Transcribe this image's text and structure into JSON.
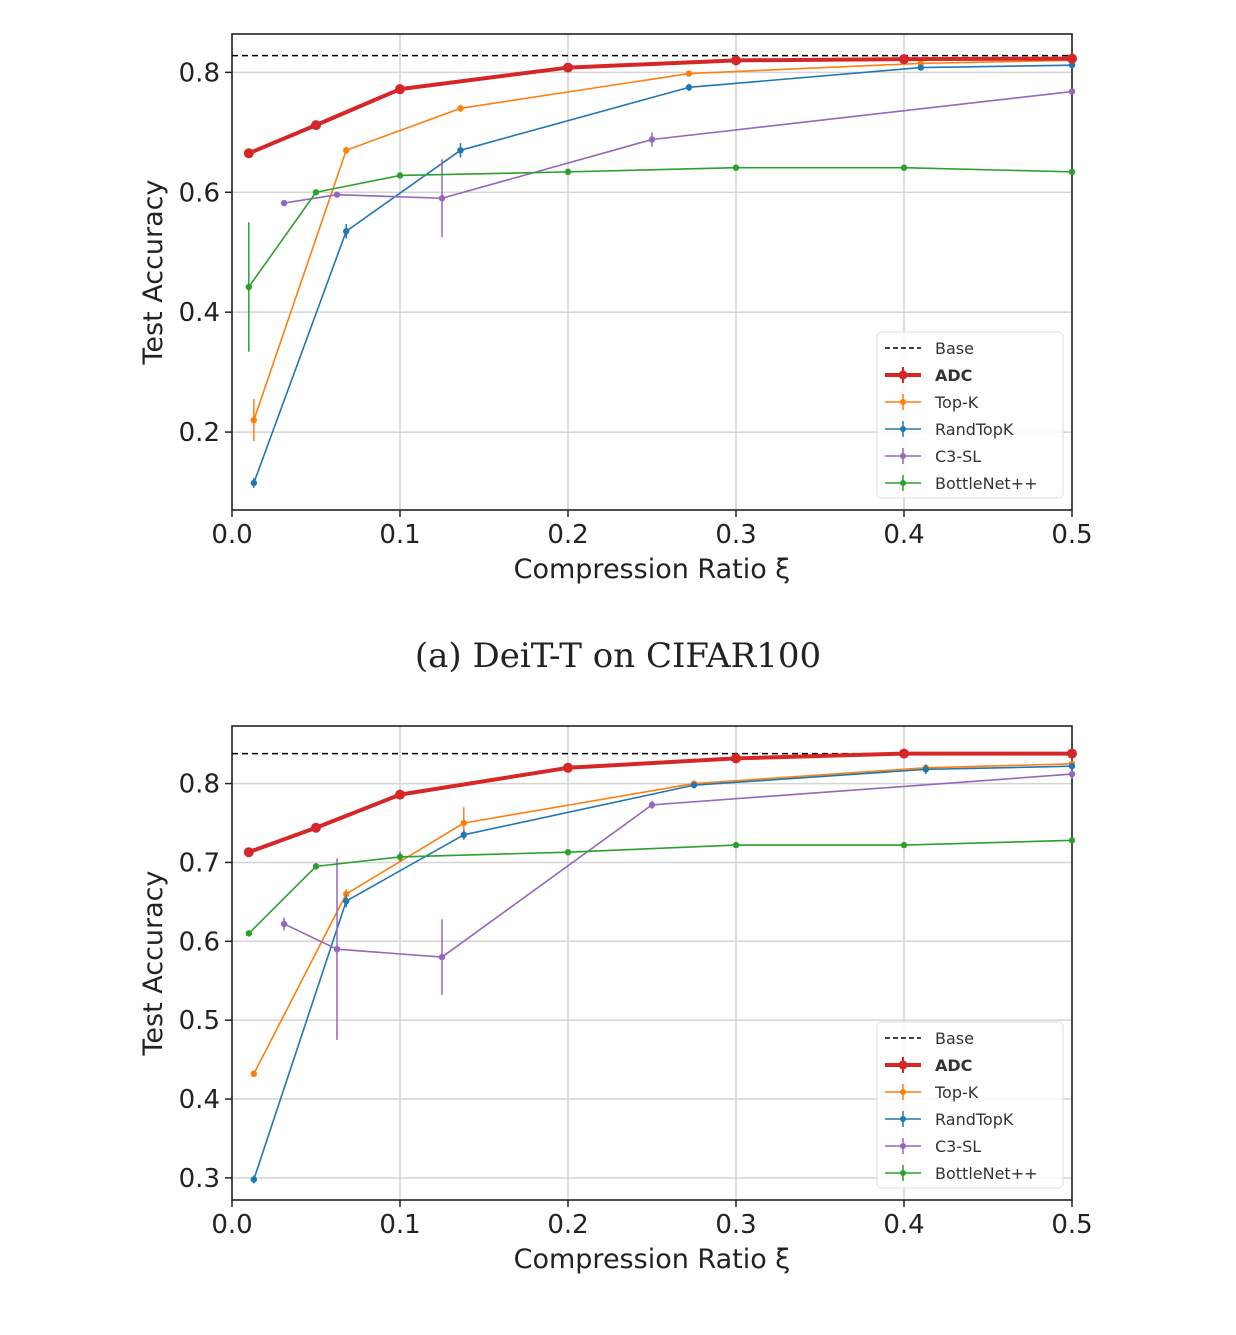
{
  "caption": "(a) DeiT-T on CIFAR100",
  "colors": {
    "ADC": "#d62728",
    "Top-K": "#ff7f0e",
    "RandTopK": "#1f77b4",
    "C3-SL": "#9467bd",
    "BottleNet++": "#2ca02c",
    "Base": "#000000"
  },
  "chart_data": [
    {
      "type": "line",
      "title": "",
      "xlabel": "Compression Ratio ξ",
      "ylabel": "Test Accuracy",
      "xlim": [
        0,
        0.5
      ],
      "ylim": [
        0.07,
        0.864
      ],
      "xticks": [
        0,
        0.1,
        0.2,
        0.3,
        0.4,
        0.5
      ],
      "xtick_labels": [
        "0.0",
        "0.1",
        "0.2",
        "0.3",
        "0.4",
        "0.5"
      ],
      "yticks": [
        0.2,
        0.4,
        0.6,
        0.8
      ],
      "ytick_labels": [
        "0.2",
        "0.4",
        "0.6",
        "0.8"
      ],
      "grid": true,
      "legend_position": "lower-right",
      "base": {
        "name": "Base",
        "value": 0.828
      },
      "series": [
        {
          "name": "ADC",
          "bold": true,
          "x": [
            0.01,
            0.05,
            0.1,
            0.2,
            0.3,
            0.4,
            0.5
          ],
          "y": [
            0.665,
            0.712,
            0.772,
            0.808,
            0.82,
            0.822,
            0.823
          ],
          "err": [
            0.005,
            0.005,
            0.005,
            0.004,
            0.004,
            0.003,
            0.003
          ]
        },
        {
          "name": "Top-K",
          "x": [
            0.013,
            0.068,
            0.136,
            0.272,
            0.41,
            0.5
          ],
          "y": [
            0.22,
            0.67,
            0.74,
            0.798,
            0.815,
            0.82
          ],
          "err": [
            0.035,
            0.006,
            0.006,
            0.004,
            0.003,
            0.003
          ]
        },
        {
          "name": "RandTopK",
          "x": [
            0.013,
            0.068,
            0.136,
            0.272,
            0.41,
            0.5
          ],
          "y": [
            0.115,
            0.535,
            0.67,
            0.775,
            0.808,
            0.812
          ],
          "err": [
            0.008,
            0.012,
            0.012,
            0.006,
            0.004,
            0.003
          ]
        },
        {
          "name": "C3-SL",
          "x": [
            0.031,
            0.0625,
            0.125,
            0.25,
            0.5
          ],
          "y": [
            0.582,
            0.596,
            0.59,
            0.688,
            0.768
          ],
          "err": [
            0.004,
            0.005,
            0.065,
            0.012,
            0.004
          ]
        },
        {
          "name": "BottleNet++",
          "x": [
            0.01,
            0.05,
            0.1,
            0.2,
            0.3,
            0.4,
            0.5
          ],
          "y": [
            0.442,
            0.6,
            0.628,
            0.634,
            0.641,
            0.641,
            0.634
          ],
          "err": [
            0.108,
            0.004,
            0.003,
            0.003,
            0.003,
            0.003,
            0.003
          ]
        }
      ]
    },
    {
      "type": "line",
      "title": "",
      "xlabel": "Compression Ratio ξ",
      "ylabel": "Test Accuracy",
      "xlim": [
        0,
        0.5
      ],
      "ylim": [
        0.272,
        0.873
      ],
      "xticks": [
        0,
        0.1,
        0.2,
        0.3,
        0.4,
        0.5
      ],
      "xtick_labels": [
        "0.0",
        "0.1",
        "0.2",
        "0.3",
        "0.4",
        "0.5"
      ],
      "yticks": [
        0.3,
        0.4,
        0.5,
        0.6,
        0.7,
        0.8
      ],
      "ytick_labels": [
        "0.3",
        "0.4",
        "0.5",
        "0.6",
        "0.7",
        "0.8"
      ],
      "grid": true,
      "legend_position": "lower-right",
      "base": {
        "name": "Base",
        "value": 0.838
      },
      "series": [
        {
          "name": "ADC",
          "bold": true,
          "x": [
            0.01,
            0.05,
            0.1,
            0.2,
            0.3,
            0.4,
            0.5
          ],
          "y": [
            0.713,
            0.744,
            0.786,
            0.82,
            0.832,
            0.838,
            0.838
          ],
          "err": [
            0.004,
            0.004,
            0.004,
            0.003,
            0.003,
            0.003,
            0.003
          ]
        },
        {
          "name": "Top-K",
          "x": [
            0.013,
            0.068,
            0.138,
            0.275,
            0.413,
            0.5
          ],
          "y": [
            0.432,
            0.66,
            0.75,
            0.8,
            0.82,
            0.825
          ],
          "err": [
            0.004,
            0.006,
            0.02,
            0.004,
            0.003,
            0.003
          ]
        },
        {
          "name": "RandTopK",
          "x": [
            0.013,
            0.068,
            0.138,
            0.275,
            0.413,
            0.5
          ],
          "y": [
            0.298,
            0.651,
            0.735,
            0.798,
            0.818,
            0.822
          ],
          "err": [
            0.005,
            0.008,
            0.006,
            0.004,
            0.006,
            0.003
          ]
        },
        {
          "name": "C3-SL",
          "x": [
            0.031,
            0.0625,
            0.125,
            0.25,
            0.5
          ],
          "y": [
            0.622,
            0.59,
            0.58,
            0.773,
            0.812
          ],
          "err": [
            0.008,
            0.115,
            0.048,
            0.005,
            0.006
          ]
        },
        {
          "name": "BottleNet++",
          "x": [
            0.01,
            0.05,
            0.1,
            0.2,
            0.3,
            0.4,
            0.5
          ],
          "y": [
            0.61,
            0.695,
            0.707,
            0.713,
            0.722,
            0.722,
            0.728
          ],
          "err": [
            0.004,
            0.004,
            0.006,
            0.004,
            0.003,
            0.003,
            0.003
          ]
        }
      ]
    }
  ]
}
